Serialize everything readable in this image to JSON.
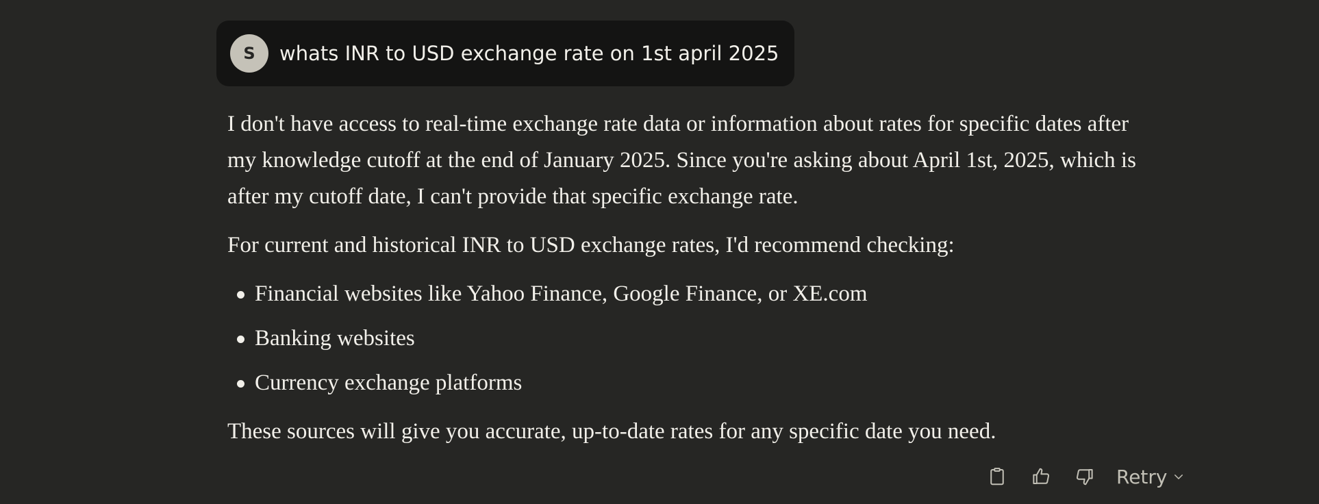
{
  "user_message": {
    "avatar_initial": "S",
    "text": "whats INR to USD exchange rate on 1st april 2025"
  },
  "assistant_message": {
    "paragraph_1": "I don't have access to real-time exchange rate data or information about rates for specific dates after my knowledge cutoff at the end of January 2025. Since you're asking about April 1st, 2025, which is after my cutoff date, I can't provide that specific exchange rate.",
    "paragraph_2": "For current and historical INR to USD exchange rates, I'd recommend checking:",
    "list_items": [
      "Financial websites like Yahoo Finance, Google Finance, or XE.com",
      "Banking websites",
      "Currency exchange platforms"
    ],
    "paragraph_3": "These sources will give you accurate, up-to-date rates for any specific date you need."
  },
  "actions": {
    "copy_icon": "clipboard-icon",
    "thumbs_up_icon": "thumbs-up-icon",
    "thumbs_down_icon": "thumbs-down-icon",
    "retry_label": "Retry",
    "retry_chevron_icon": "chevron-down-icon"
  },
  "colors": {
    "background": "#262624",
    "user_bubble": "#141413",
    "avatar": "#c5c2b8",
    "text": "#f2f0ea",
    "muted": "#c2c0b6"
  }
}
